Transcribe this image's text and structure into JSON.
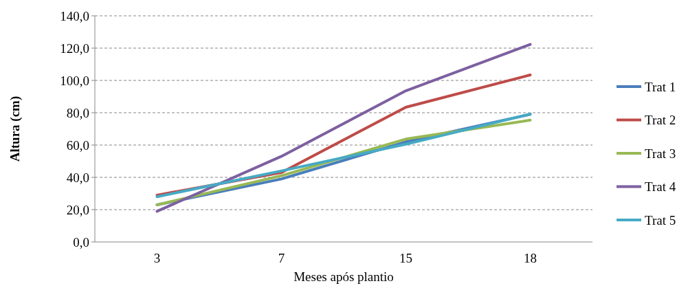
{
  "chart_data": {
    "type": "line",
    "xlabel": "Meses após plantio",
    "ylabel": "Altura (cm)",
    "categories": [
      "3",
      "7",
      "15",
      "18"
    ],
    "series": [
      {
        "name": "Trat 1",
        "color": "#4a7ebb",
        "values": [
          23,
          39,
          62,
          79
        ]
      },
      {
        "name": "Trat 2",
        "color": "#be4b48",
        "values": [
          29,
          43,
          83.4,
          103.4
        ]
      },
      {
        "name": "Trat 3",
        "color": "#98b954",
        "values": [
          23,
          41,
          63.7,
          75.4
        ]
      },
      {
        "name": "Trat 4",
        "color": "#7d60a0",
        "values": [
          19,
          53,
          93.6,
          122.3
        ]
      },
      {
        "name": "Trat 5",
        "color": "#46aac5",
        "values": [
          28,
          44,
          60.5,
          79.2
        ]
      }
    ],
    "ylim": [
      0,
      140
    ],
    "yticks": [
      {
        "value": 0,
        "label": "0,0"
      },
      {
        "value": 20,
        "label": "20,0"
      },
      {
        "value": 40,
        "label": "40,0"
      },
      {
        "value": 60,
        "label": "60,0"
      },
      {
        "value": 80,
        "label": "80,0"
      },
      {
        "value": 100,
        "label": "100,0"
      },
      {
        "value": 120,
        "label": "120,0"
      },
      {
        "value": 140,
        "label": "140,0"
      }
    ],
    "grid": "y",
    "legend": "right",
    "line_style": "solid",
    "marker": "none"
  }
}
